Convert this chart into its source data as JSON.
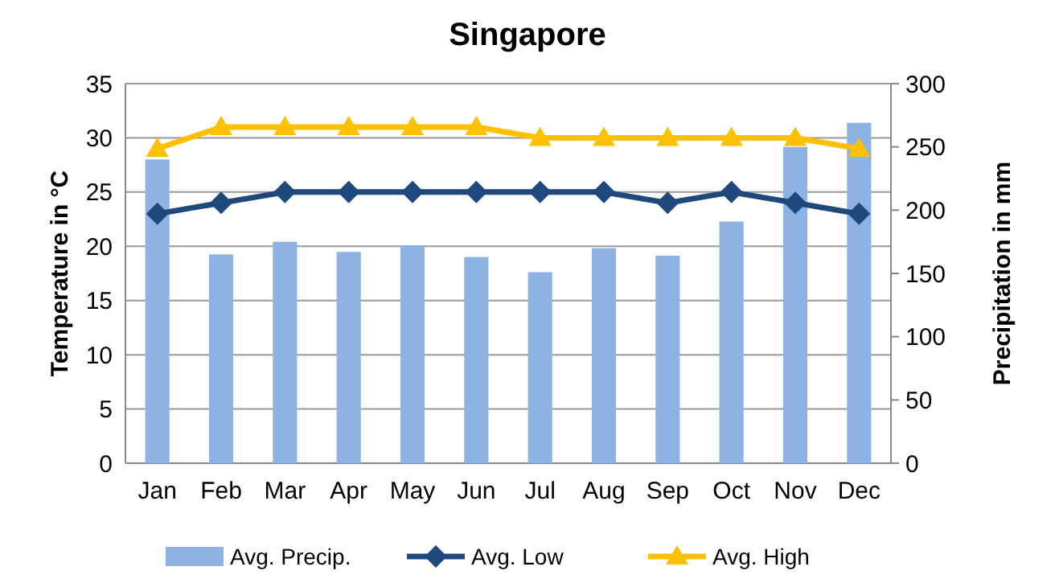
{
  "chart_data": {
    "type": "bar",
    "title": "Singapore",
    "ylabel": "Temperature in °C",
    "y2label": "Precipitation in mm",
    "categories": [
      "Jan",
      "Feb",
      "Mar",
      "Apr",
      "May",
      "Jun",
      "Jul",
      "Aug",
      "Sep",
      "Oct",
      "Nov",
      "Dec"
    ],
    "series": [
      {
        "name": "Avg. Precip.",
        "axis": "y2",
        "color": "#8db3e2",
        "values": [
          240,
          165,
          175,
          167,
          172,
          163,
          151,
          170,
          164,
          191,
          250,
          269
        ]
      },
      {
        "name": "Avg. Low",
        "type": "line",
        "color": "#1f497d",
        "marker": "diamond",
        "values": [
          23,
          24,
          25,
          25,
          25,
          25,
          25,
          25,
          24,
          25,
          24,
          23
        ]
      },
      {
        "name": "Avg. High",
        "type": "line",
        "color": "#ffc000",
        "marker": "triangle",
        "values": [
          29,
          31,
          31,
          31,
          31,
          31,
          30,
          30,
          30,
          30,
          30,
          29
        ]
      }
    ],
    "ylim": [
      0,
      35
    ],
    "yticks": [
      0,
      5,
      10,
      15,
      20,
      25,
      30,
      35
    ],
    "y2lim": [
      0,
      300
    ],
    "y2ticks": [
      0,
      50,
      100,
      150,
      200,
      250,
      300
    ],
    "grid": "y",
    "legend": "bottom"
  }
}
